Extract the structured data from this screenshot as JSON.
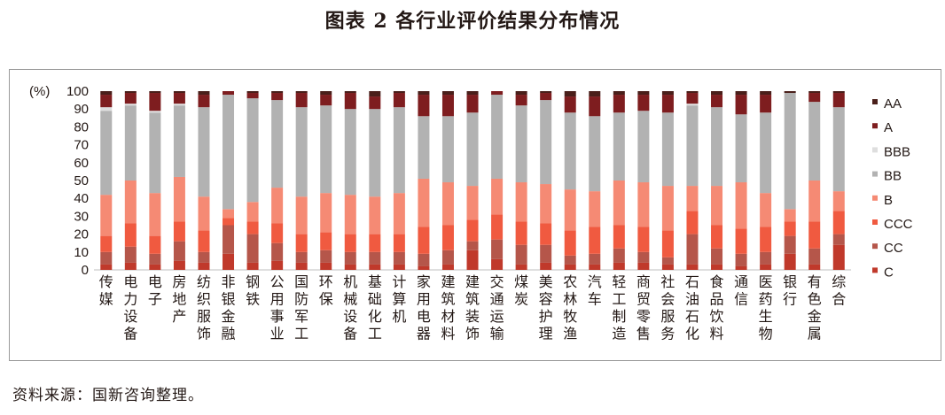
{
  "figure_title": "图表 2  各行业评价结果分布情况",
  "source_note": "资料来源：国新咨询整理。",
  "chart_data": {
    "type": "bar",
    "stacked": true,
    "ylabel": "(%)",
    "ylim": [
      0,
      100
    ],
    "yticks": [
      0,
      10,
      20,
      30,
      40,
      50,
      60,
      70,
      80,
      90,
      100
    ],
    "legend_position": "right",
    "categories": [
      "传媒",
      "电力设备",
      "电子",
      "房地产",
      "纺织服饰",
      "非银金融",
      "钢铁",
      "公用事业",
      "国防军工",
      "环保",
      "机械设备",
      "基础化工",
      "计算机",
      "家用电器",
      "建筑材料",
      "建筑装饰",
      "交通运输",
      "煤炭",
      "美容护理",
      "农林牧渔",
      "汽车",
      "轻工制造",
      "商贸零售",
      "社会服务",
      "石油石化",
      "食品饮料",
      "通信",
      "医药生物",
      "银行",
      "有色金属",
      "综合"
    ],
    "series": [
      {
        "name": "C",
        "color": "#c0392b",
        "values": [
          3,
          4,
          3,
          5,
          4,
          9,
          4,
          5,
          4,
          4,
          3,
          3,
          3,
          2,
          3,
          11,
          6,
          3,
          4,
          3,
          3,
          4,
          4,
          3,
          3,
          3,
          2,
          3,
          9,
          3,
          14
        ]
      },
      {
        "name": "CC",
        "color": "#b5564a",
        "values": [
          7,
          9,
          6,
          11,
          6,
          16,
          16,
          10,
          6,
          7,
          7,
          7,
          7,
          7,
          8,
          5,
          11,
          11,
          10,
          5,
          6,
          8,
          6,
          4,
          17,
          9,
          7,
          7,
          10,
          9,
          6
        ]
      },
      {
        "name": "CCC",
        "color": "#f05a40",
        "values": [
          9,
          13,
          10,
          11,
          12,
          4,
          7,
          11,
          10,
          10,
          10,
          10,
          10,
          15,
          14,
          12,
          14,
          13,
          12,
          14,
          15,
          13,
          14,
          15,
          13,
          13,
          14,
          14,
          8,
          15,
          13
        ]
      },
      {
        "name": "B",
        "color": "#f58a74",
        "values": [
          23,
          24,
          24,
          25,
          19,
          5,
          11,
          20,
          21,
          22,
          22,
          21,
          23,
          27,
          24,
          19,
          20,
          22,
          22,
          23,
          20,
          25,
          25,
          25,
          14,
          22,
          26,
          19,
          7,
          23,
          11
        ]
      },
      {
        "name": "BB",
        "color": "#b2b2b2",
        "values": [
          47,
          42,
          45,
          40,
          50,
          64,
          58,
          49,
          50,
          49,
          48,
          49,
          48,
          35,
          37,
          41,
          47,
          43,
          47,
          43,
          42,
          38,
          40,
          41,
          45,
          44,
          38,
          45,
          65,
          44,
          47
        ]
      },
      {
        "name": "BBB",
        "color": "#dedede",
        "values": [
          2,
          1,
          1,
          1,
          0,
          0,
          0,
          0,
          0,
          0,
          0,
          0,
          0,
          0,
          0,
          0,
          0,
          0,
          0,
          0,
          0,
          0,
          0,
          0,
          1,
          0,
          0,
          0,
          0,
          0,
          0
        ]
      },
      {
        "name": "A",
        "color": "#7e1d1f",
        "values": [
          7,
          6,
          10,
          6,
          7,
          2,
          3,
          4,
          8,
          6,
          9,
          7,
          8,
          12,
          12,
          10,
          2,
          6,
          4,
          9,
          11,
          10,
          9,
          10,
          6,
          7,
          11,
          10,
          0,
          5,
          8
        ]
      },
      {
        "name": "AA",
        "color": "#4a1f1a",
        "values": [
          2,
          1,
          1,
          1,
          2,
          0,
          1,
          1,
          1,
          2,
          1,
          3,
          1,
          2,
          2,
          2,
          0,
          2,
          1,
          3,
          3,
          2,
          2,
          2,
          1,
          2,
          2,
          2,
          1,
          1,
          1
        ]
      }
    ],
    "legend_order": [
      "AA",
      "A",
      "BBB",
      "BB",
      "B",
      "CCC",
      "CC",
      "C"
    ]
  }
}
